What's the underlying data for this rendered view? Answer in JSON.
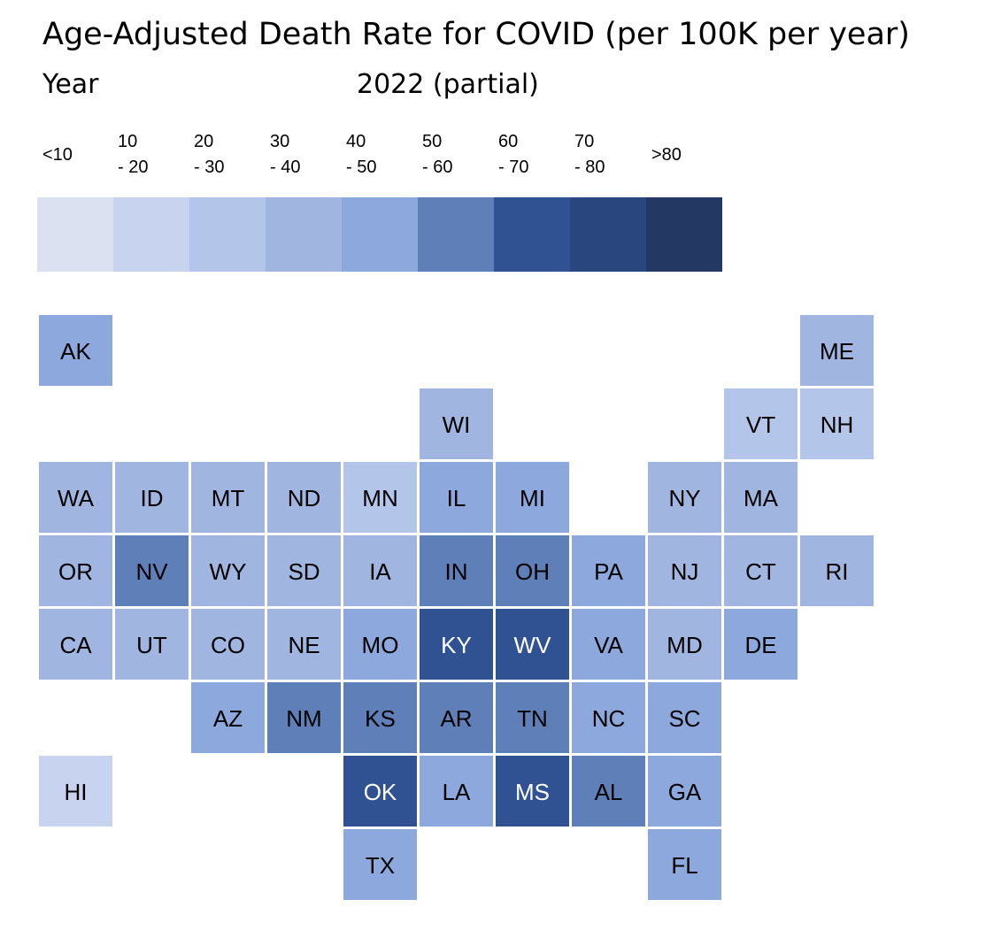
{
  "header": {
    "title": "Age-Adjusted Death Rate for COVID (per 100K per year)",
    "subtitle_label": "Year",
    "subtitle_value": "2022 (partial)"
  },
  "chart_data": {
    "type": "heatmap",
    "subtype": "us-state-tile-grid-map",
    "title": "Age-Adjusted Death Rate for COVID (per 100K per year)",
    "filter": {
      "label": "Year",
      "value": "2022 (partial)"
    },
    "legend": {
      "placement": "top",
      "bins": [
        {
          "label_top": "<10",
          "label_bottom": "",
          "color": "#DCE1F2"
        },
        {
          "label_top": "10",
          "label_bottom": "- 20",
          "color": "#C8D4EF"
        },
        {
          "label_top": "20",
          "label_bottom": "- 30",
          "color": "#B3C5E8"
        },
        {
          "label_top": "30",
          "label_bottom": "- 40",
          "color": "#A0B6E0"
        },
        {
          "label_top": "40",
          "label_bottom": "- 50",
          "color": "#8DA8DC"
        },
        {
          "label_top": "50",
          "label_bottom": "- 60",
          "color": "#5F7FB8"
        },
        {
          "label_top": "60",
          "label_bottom": "- 70",
          "color": "#305293"
        },
        {
          "label_top": "70",
          "label_bottom": "- 80",
          "color": "#2A467E"
        },
        {
          "label_top": ">80",
          "label_bottom": "",
          "color": "#233862"
        }
      ]
    },
    "states": [
      {
        "abbr": "AK",
        "row": 0,
        "col": 0,
        "bin": 4
      },
      {
        "abbr": "ME",
        "row": 0,
        "col": 10,
        "bin": 3
      },
      {
        "abbr": "WI",
        "row": 1,
        "col": 5,
        "bin": 3
      },
      {
        "abbr": "VT",
        "row": 1,
        "col": 9,
        "bin": 2
      },
      {
        "abbr": "NH",
        "row": 1,
        "col": 10,
        "bin": 2
      },
      {
        "abbr": "WA",
        "row": 2,
        "col": 0,
        "bin": 3
      },
      {
        "abbr": "ID",
        "row": 2,
        "col": 1,
        "bin": 3
      },
      {
        "abbr": "MT",
        "row": 2,
        "col": 2,
        "bin": 3
      },
      {
        "abbr": "ND",
        "row": 2,
        "col": 3,
        "bin": 3
      },
      {
        "abbr": "MN",
        "row": 2,
        "col": 4,
        "bin": 2
      },
      {
        "abbr": "IL",
        "row": 2,
        "col": 5,
        "bin": 4
      },
      {
        "abbr": "MI",
        "row": 2,
        "col": 6,
        "bin": 4
      },
      {
        "abbr": "NY",
        "row": 2,
        "col": 8,
        "bin": 3
      },
      {
        "abbr": "MA",
        "row": 2,
        "col": 9,
        "bin": 3
      },
      {
        "abbr": "OR",
        "row": 3,
        "col": 0,
        "bin": 3
      },
      {
        "abbr": "NV",
        "row": 3,
        "col": 1,
        "bin": 5
      },
      {
        "abbr": "WY",
        "row": 3,
        "col": 2,
        "bin": 3
      },
      {
        "abbr": "SD",
        "row": 3,
        "col": 3,
        "bin": 3
      },
      {
        "abbr": "IA",
        "row": 3,
        "col": 4,
        "bin": 3
      },
      {
        "abbr": "IN",
        "row": 3,
        "col": 5,
        "bin": 5
      },
      {
        "abbr": "OH",
        "row": 3,
        "col": 6,
        "bin": 5
      },
      {
        "abbr": "PA",
        "row": 3,
        "col": 7,
        "bin": 4
      },
      {
        "abbr": "NJ",
        "row": 3,
        "col": 8,
        "bin": 3
      },
      {
        "abbr": "CT",
        "row": 3,
        "col": 9,
        "bin": 3
      },
      {
        "abbr": "RI",
        "row": 3,
        "col": 10,
        "bin": 3
      },
      {
        "abbr": "CA",
        "row": 4,
        "col": 0,
        "bin": 3
      },
      {
        "abbr": "UT",
        "row": 4,
        "col": 1,
        "bin": 3
      },
      {
        "abbr": "CO",
        "row": 4,
        "col": 2,
        "bin": 3
      },
      {
        "abbr": "NE",
        "row": 4,
        "col": 3,
        "bin": 3
      },
      {
        "abbr": "MO",
        "row": 4,
        "col": 4,
        "bin": 4
      },
      {
        "abbr": "KY",
        "row": 4,
        "col": 5,
        "bin": 6
      },
      {
        "abbr": "WV",
        "row": 4,
        "col": 6,
        "bin": 6
      },
      {
        "abbr": "VA",
        "row": 4,
        "col": 7,
        "bin": 4
      },
      {
        "abbr": "MD",
        "row": 4,
        "col": 8,
        "bin": 3
      },
      {
        "abbr": "DE",
        "row": 4,
        "col": 9,
        "bin": 4
      },
      {
        "abbr": "AZ",
        "row": 5,
        "col": 2,
        "bin": 4
      },
      {
        "abbr": "NM",
        "row": 5,
        "col": 3,
        "bin": 5
      },
      {
        "abbr": "KS",
        "row": 5,
        "col": 4,
        "bin": 5
      },
      {
        "abbr": "AR",
        "row": 5,
        "col": 5,
        "bin": 5
      },
      {
        "abbr": "TN",
        "row": 5,
        "col": 6,
        "bin": 5
      },
      {
        "abbr": "NC",
        "row": 5,
        "col": 7,
        "bin": 4
      },
      {
        "abbr": "SC",
        "row": 5,
        "col": 8,
        "bin": 4
      },
      {
        "abbr": "HI",
        "row": 6,
        "col": 0,
        "bin": 1
      },
      {
        "abbr": "OK",
        "row": 6,
        "col": 4,
        "bin": 6
      },
      {
        "abbr": "LA",
        "row": 6,
        "col": 5,
        "bin": 4
      },
      {
        "abbr": "MS",
        "row": 6,
        "col": 6,
        "bin": 6
      },
      {
        "abbr": "AL",
        "row": 6,
        "col": 7,
        "bin": 5
      },
      {
        "abbr": "GA",
        "row": 6,
        "col": 8,
        "bin": 4
      },
      {
        "abbr": "TX",
        "row": 7,
        "col": 4,
        "bin": 4
      },
      {
        "abbr": "FL",
        "row": 7,
        "col": 8,
        "bin": 4
      }
    ]
  }
}
